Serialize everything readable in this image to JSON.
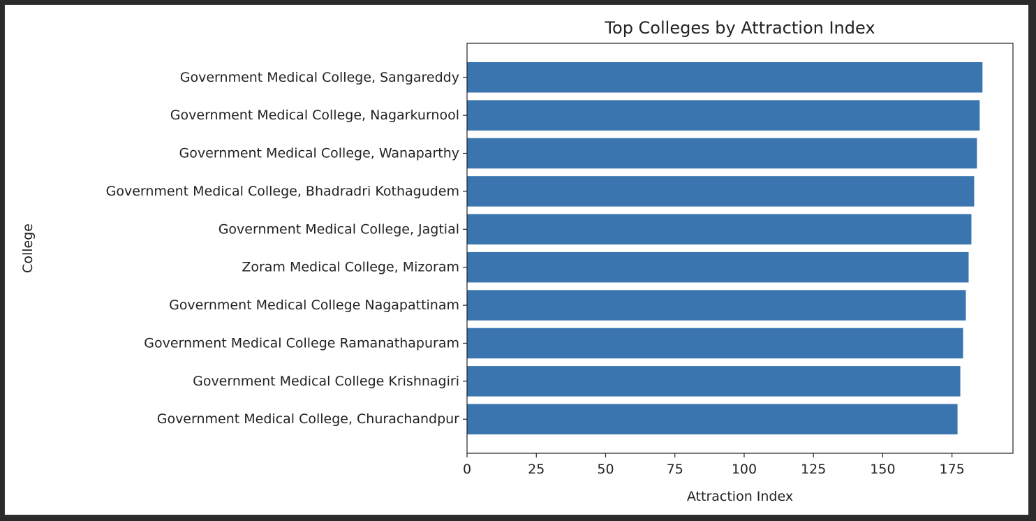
{
  "chart_data": {
    "type": "bar",
    "orientation": "horizontal",
    "title": "Top Colleges by Attraction Index",
    "xlabel": "Attraction Index",
    "ylabel": "College",
    "xlim": [
      0,
      197
    ],
    "xticks": [
      0,
      25,
      50,
      75,
      100,
      125,
      150,
      175
    ],
    "categories": [
      "Government Medical College, Sangareddy",
      "Government Medical College, Nagarkurnool",
      "Government Medical College, Wanaparthy",
      "Government Medical College, Bhadradri Kothagudem",
      "Government Medical College, Jagtial",
      "Zoram Medical College, Mizoram",
      "Government Medical College Nagapattinam",
      "Government Medical College Ramanathapuram",
      "Government Medical College Krishnagiri",
      "Government Medical College, Churachandpur"
    ],
    "values": [
      186,
      185,
      184,
      183,
      182,
      181,
      180,
      179,
      178,
      177
    ],
    "bar_color": "#3b75af",
    "grid": false,
    "legend": "none"
  }
}
